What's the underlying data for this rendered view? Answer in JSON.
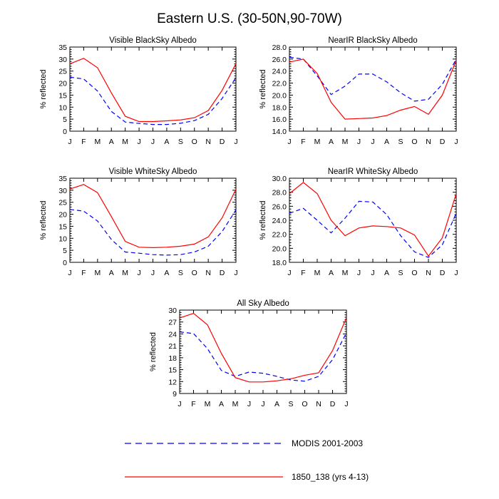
{
  "title": "Eastern U.S. (30-50N,90-70W)",
  "chart_data": [
    {
      "type": "line",
      "title": "Visible BlackSky Albedo",
      "ylabel": "% reflected",
      "ylim": [
        0,
        35
      ],
      "yticks": [
        "0",
        "5",
        "10",
        "15",
        "20",
        "25",
        "30",
        "35"
      ],
      "categories": [
        "J",
        "F",
        "M",
        "A",
        "M",
        "J",
        "J",
        "A",
        "S",
        "O",
        "N",
        "D",
        "J"
      ],
      "series": [
        {
          "name": "MODIS 2001-2003",
          "color": "#0000ff",
          "dash": true,
          "values": [
            22.5,
            21.7,
            16.7,
            8.2,
            3.8,
            3.2,
            2.8,
            2.8,
            3.3,
            4.4,
            7.0,
            13.6,
            22.3
          ]
        },
        {
          "name": "1850_138 (yrs 4-13)",
          "color": "#ff0000",
          "dash": false,
          "values": [
            28.0,
            30.3,
            26.4,
            15.9,
            6.2,
            4.0,
            4.0,
            4.3,
            4.7,
            5.6,
            8.6,
            17.0,
            28.1
          ]
        }
      ]
    },
    {
      "type": "line",
      "title": "NearIR BlackSky Albedo",
      "ylabel": "% reflected",
      "ylim": [
        14,
        28
      ],
      "yticks": [
        "14.0",
        "16.0",
        "18.0",
        "20.0",
        "22.0",
        "24.0",
        "26.0",
        "28.0"
      ],
      "categories": [
        "J",
        "F",
        "M",
        "A",
        "M",
        "J",
        "J",
        "A",
        "S",
        "O",
        "N",
        "D",
        "J"
      ],
      "series": [
        {
          "name": "MODIS 2001-2003",
          "color": "#0000ff",
          "dash": true,
          "values": [
            26.3,
            26.0,
            23.2,
            20.1,
            21.5,
            23.5,
            23.5,
            22.2,
            20.4,
            19.0,
            19.3,
            21.8,
            26.0
          ]
        },
        {
          "name": "1850_138 (yrs 4-13)",
          "color": "#ff0000",
          "dash": false,
          "values": [
            25.5,
            26.0,
            23.6,
            18.8,
            16.0,
            16.1,
            16.2,
            16.6,
            17.5,
            18.1,
            16.8,
            20.0,
            25.8
          ]
        }
      ]
    },
    {
      "type": "line",
      "title": "Visible WhiteSky Albedo",
      "ylabel": "% reflected",
      "ylim": [
        0,
        35
      ],
      "yticks": [
        "0",
        "5",
        "10",
        "15",
        "20",
        "25",
        "30",
        "35"
      ],
      "categories": [
        "J",
        "F",
        "M",
        "A",
        "M",
        "J",
        "J",
        "A",
        "S",
        "O",
        "N",
        "D",
        "J"
      ],
      "series": [
        {
          "name": "MODIS 2001-2003",
          "color": "#0000ff",
          "dash": true,
          "values": [
            22.0,
            21.3,
            17.2,
            9.5,
            4.3,
            3.8,
            3.2,
            3.0,
            3.2,
            4.3,
            6.7,
            12.8,
            21.8
          ]
        },
        {
          "name": "1850_138 (yrs 4-13)",
          "color": "#ff0000",
          "dash": false,
          "values": [
            30.5,
            32.4,
            29.0,
            19.0,
            8.7,
            6.3,
            6.1,
            6.3,
            6.7,
            7.6,
            10.6,
            18.5,
            30.5
          ]
        }
      ]
    },
    {
      "type": "line",
      "title": "NearIR WhiteSky Albedo",
      "ylabel": "% reflected",
      "ylim": [
        18,
        30
      ],
      "yticks": [
        "18.0",
        "20.0",
        "22.0",
        "24.0",
        "26.0",
        "28.0",
        "30.0"
      ],
      "categories": [
        "J",
        "F",
        "M",
        "A",
        "M",
        "J",
        "J",
        "A",
        "S",
        "O",
        "N",
        "D",
        "J"
      ],
      "series": [
        {
          "name": "MODIS 2001-2003",
          "color": "#0000ff",
          "dash": true,
          "values": [
            25.0,
            25.7,
            24.0,
            22.2,
            24.3,
            26.7,
            26.6,
            24.8,
            21.8,
            19.5,
            18.7,
            20.5,
            25.0
          ]
        },
        {
          "name": "1850_138 (yrs 4-13)",
          "color": "#ff0000",
          "dash": false,
          "values": [
            27.8,
            29.4,
            27.8,
            24.0,
            21.8,
            22.9,
            23.2,
            23.1,
            22.9,
            21.9,
            18.9,
            21.5,
            27.8
          ]
        }
      ]
    },
    {
      "type": "line",
      "title": "All Sky Albedo",
      "ylabel": "% reflected",
      "ylim": [
        9,
        30
      ],
      "yticks": [
        "9",
        "12",
        "15",
        "18",
        "21",
        "24",
        "27",
        "30"
      ],
      "categories": [
        "J",
        "F",
        "M",
        "A",
        "M",
        "J",
        "J",
        "A",
        "S",
        "O",
        "N",
        "D",
        "J"
      ],
      "series": [
        {
          "name": "MODIS 2001-2003",
          "color": "#0000ff",
          "dash": true,
          "values": [
            24.5,
            24.1,
            20.3,
            14.8,
            13.3,
            14.4,
            14.1,
            13.3,
            12.4,
            12.1,
            13.3,
            17.5,
            24.3
          ]
        },
        {
          "name": "1850_138 (yrs 4-13)",
          "color": "#ff0000",
          "dash": false,
          "values": [
            28.0,
            29.2,
            26.3,
            19.1,
            13.0,
            11.9,
            11.9,
            12.2,
            12.7,
            13.6,
            14.2,
            19.8,
            28.1
          ]
        }
      ]
    }
  ],
  "legend": [
    {
      "label": "MODIS 2001-2003",
      "color": "#0000ff",
      "dash": true
    },
    {
      "label": "1850_138 (yrs 4-13)",
      "color": "#ff0000",
      "dash": false
    }
  ]
}
